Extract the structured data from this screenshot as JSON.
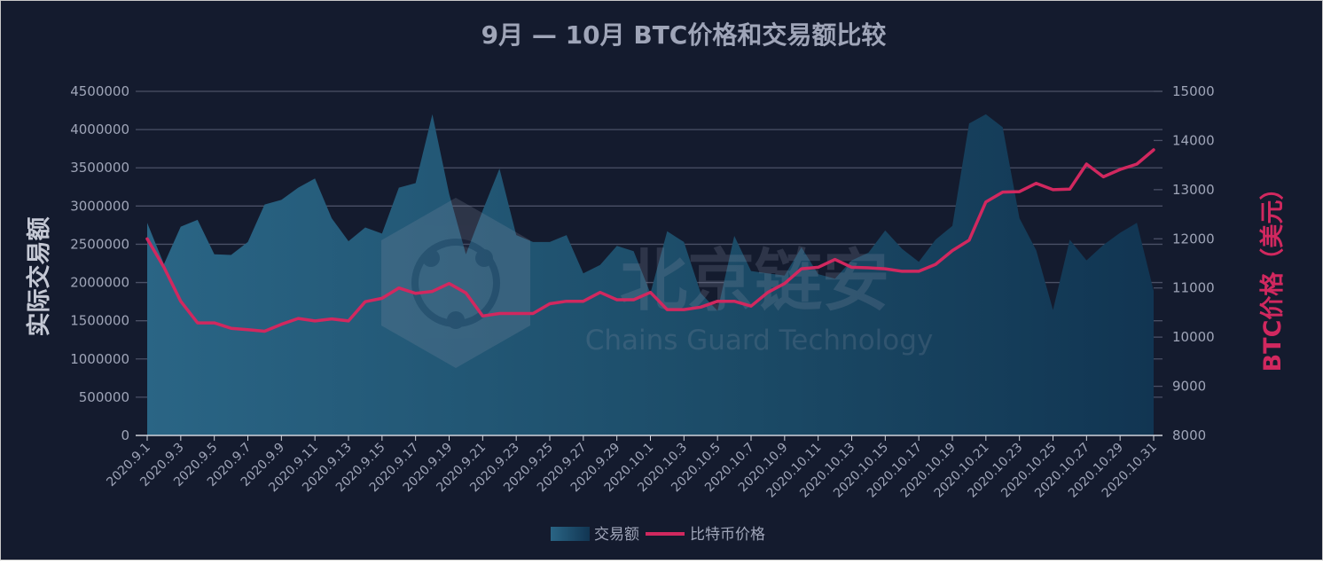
{
  "chart_data": {
    "type": "area+line",
    "title": "9月 — 10月 BTC价格和交易额比较",
    "ylabel_left": "实际交易额",
    "ylabel_right": "BTC价格（美元）",
    "ylim_left": [
      0,
      4500000
    ],
    "ylim_right": [
      8000,
      15000
    ],
    "yticks_left": [
      "0",
      "500000",
      "1000000",
      "1500000",
      "2000000",
      "2500000",
      "3000000",
      "3500000",
      "4000000",
      "4500000"
    ],
    "yticks_right": [
      "8000",
      "9000",
      "10000",
      "11000",
      "12000",
      "13000",
      "14000",
      "15000"
    ],
    "grid": true,
    "legend_position": "bottom-center",
    "x": [
      "2020.9.1",
      "2020.9.2",
      "2020.9.3",
      "2020.9.4",
      "2020.9.5",
      "2020.9.6",
      "2020.9.7",
      "2020.9.8",
      "2020.9.9",
      "2020.9.10",
      "2020.9.11",
      "2020.9.12",
      "2020.9.13",
      "2020.9.14",
      "2020.9.15",
      "2020.9.16",
      "2020.9.17",
      "2020.9.18",
      "2020.9.19",
      "2020.9.20",
      "2020.9.21",
      "2020.9.22",
      "2020.9.23",
      "2020.9.24",
      "2020.9.25",
      "2020.9.26",
      "2020.9.27",
      "2020.9.28",
      "2020.9.29",
      "2020.9.30",
      "2020.10.1",
      "2020.10.2",
      "2020.10.3",
      "2020.10.4",
      "2020.10.5",
      "2020.10.6",
      "2020.10.7",
      "2020.10.8",
      "2020.10.9",
      "2020.10.10",
      "2020.10.11",
      "2020.10.12",
      "2020.10.13",
      "2020.10.14",
      "2020.10.15",
      "2020.10.16",
      "2020.10.17",
      "2020.10.18",
      "2020.10.19",
      "2020.10.20",
      "2020.10.21",
      "2020.10.22",
      "2020.10.23",
      "2020.10.24",
      "2020.10.25",
      "2020.10.26",
      "2020.10.27",
      "2020.10.28",
      "2020.10.29",
      "2020.10.30",
      "2020.10.31"
    ],
    "x_tick_labels": [
      "2020.9.1",
      "2020.9.3",
      "2020.9.5",
      "2020.9.7",
      "2020.9.9",
      "2020.9.11",
      "2020.9.13",
      "2020.9.15",
      "2020.9.17",
      "2020.9.19",
      "2020.9.21",
      "2020.9.23",
      "2020.9.25",
      "2020.9.27",
      "2020.9.29",
      "2020.10.1",
      "2020.10.3",
      "2020.10.5",
      "2020.10.7",
      "2020.10.9",
      "2020.10.11",
      "2020.10.13",
      "2020.10.15",
      "2020.10.17",
      "2020.10.19",
      "2020.10.21",
      "2020.10.23",
      "2020.10.25",
      "2020.10.27",
      "2020.10.29",
      "2020.10.31"
    ],
    "series": [
      {
        "name": "交易额",
        "type": "area",
        "axis": "left",
        "color": "#2a5f80",
        "values": [
          2780000,
          2240000,
          2730000,
          2820000,
          2370000,
          2360000,
          2530000,
          3020000,
          3080000,
          3240000,
          3360000,
          2840000,
          2540000,
          2720000,
          2640000,
          3240000,
          3300000,
          4200000,
          3160000,
          2370000,
          2940000,
          3490000,
          2620000,
          2530000,
          2530000,
          2620000,
          2120000,
          2230000,
          2480000,
          2410000,
          1860000,
          2670000,
          2530000,
          1860000,
          1630000,
          2610000,
          2150000,
          2120000,
          2090000,
          2460000,
          2110000,
          2050000,
          2290000,
          2390000,
          2680000,
          2440000,
          2270000,
          2560000,
          2740000,
          4080000,
          4200000,
          4030000,
          2840000,
          2420000,
          1640000,
          2560000,
          2290000,
          2490000,
          2650000,
          2780000,
          1890000
        ]
      },
      {
        "name": "比特币价格",
        "type": "line",
        "axis": "right",
        "color": "#d1285f",
        "values": [
          12000,
          11420,
          10730,
          10290,
          10290,
          10180,
          10150,
          10120,
          10260,
          10380,
          10330,
          10370,
          10330,
          10720,
          10790,
          11000,
          10890,
          10930,
          11090,
          10900,
          10430,
          10480,
          10480,
          10480,
          10680,
          10730,
          10730,
          10910,
          10760,
          10760,
          10910,
          10560,
          10560,
          10610,
          10730,
          10730,
          10630,
          10910,
          11090,
          11390,
          11420,
          11580,
          11420,
          11410,
          11390,
          11340,
          11340,
          11480,
          11760,
          11970,
          12750,
          12950,
          12960,
          13130,
          13000,
          13010,
          13520,
          13260,
          13410,
          13520,
          13810
        ]
      }
    ]
  },
  "legend": {
    "area_label": "交易额",
    "line_label": "比特币价格"
  },
  "watermark": {
    "text_cn": "北京链安",
    "text_en": "Chains Guard Technology"
  },
  "colors": {
    "background": "#141b2e",
    "grid": "#4a5066",
    "axis_text": "#9fa5b8",
    "title": "#9fa5b8",
    "left_label": "#c4c8d4",
    "right_label": "#d1285f",
    "area_top": "#2a5f80",
    "area_bottom": "#16394f",
    "line": "#d1285f"
  }
}
